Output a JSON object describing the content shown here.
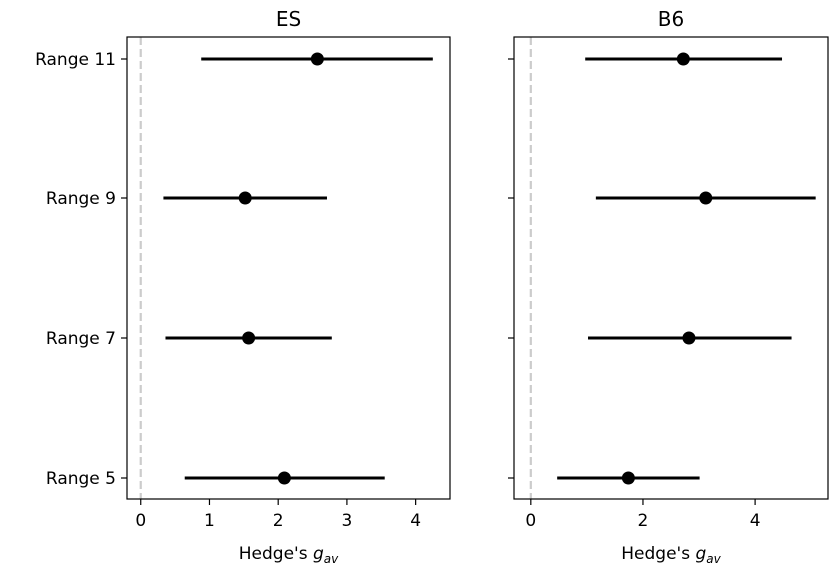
{
  "chart_data": [
    {
      "type": "forest",
      "title": "ES",
      "xlabel_base": "Hedge's ",
      "xlabel_italic": "g",
      "xlabel_sub": "av",
      "xlim": [
        -0.2,
        4.5
      ],
      "xticks": [
        0,
        1,
        2,
        3,
        4
      ],
      "reference_line_x": 0,
      "categories": [
        "Range 11",
        "Range 9",
        "Range 7",
        "Range 5"
      ],
      "points": [
        {
          "label": "Range 11",
          "estimate": 2.57,
          "lower": 0.88,
          "upper": 4.25
        },
        {
          "label": "Range 9",
          "estimate": 1.52,
          "lower": 0.33,
          "upper": 2.71
        },
        {
          "label": "Range 7",
          "estimate": 1.57,
          "lower": 0.36,
          "upper": 2.78
        },
        {
          "label": "Range 5",
          "estimate": 2.09,
          "lower": 0.64,
          "upper": 3.55
        }
      ]
    },
    {
      "type": "forest",
      "title": "B6",
      "xlabel_base": "Hedge's ",
      "xlabel_italic": "g",
      "xlabel_sub": "av",
      "xlim": [
        -0.3,
        5.3
      ],
      "xticks": [
        0,
        2,
        4
      ],
      "reference_line_x": 0,
      "categories": [
        "Range 11",
        "Range 9",
        "Range 7",
        "Range 5"
      ],
      "points": [
        {
          "label": "Range 11",
          "estimate": 2.72,
          "lower": 0.97,
          "upper": 4.48
        },
        {
          "label": "Range 9",
          "estimate": 3.12,
          "lower": 1.16,
          "upper": 5.08
        },
        {
          "label": "Range 7",
          "estimate": 2.82,
          "lower": 1.02,
          "upper": 4.65
        },
        {
          "label": "Range 5",
          "estimate": 1.74,
          "lower": 0.47,
          "upper": 3.01
        }
      ]
    }
  ],
  "colors": {
    "point": "#000000",
    "interval": "#000000",
    "reference_line": "#cccccc",
    "axes": "#000000"
  }
}
